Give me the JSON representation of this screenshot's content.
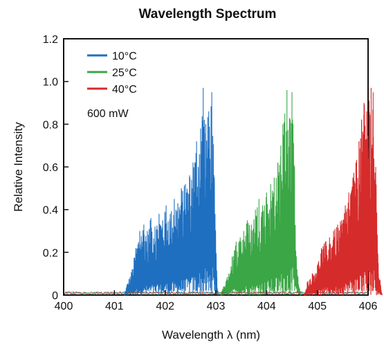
{
  "chart_data": {
    "type": "line",
    "title": "Wavelength Spectrum",
    "xlabel": "Wavelength  λ (nm)",
    "ylabel": "Relative Intensity",
    "xlim": [
      400,
      406
    ],
    "ylim": [
      0,
      1.2
    ],
    "x_ticks": [
      "400",
      "401",
      "402",
      "403",
      "404",
      "405",
      "406"
    ],
    "y_ticks": [
      "0",
      "0.2",
      "0.4",
      "0.6",
      "0.8",
      "1.0",
      "1.2"
    ],
    "grid": false,
    "legend_position": "top-left",
    "annotation": "600 mW",
    "series": [
      {
        "name": "10°C",
        "color": "#1f6fc0",
        "peaks": [
          [
            401.25,
            0.05
          ],
          [
            401.35,
            0.12
          ],
          [
            401.42,
            0.22
          ],
          [
            401.5,
            0.3
          ],
          [
            401.58,
            0.33
          ],
          [
            401.65,
            0.3
          ],
          [
            401.72,
            0.36
          ],
          [
            401.8,
            0.32
          ],
          [
            401.88,
            0.38
          ],
          [
            401.95,
            0.35
          ],
          [
            402.02,
            0.42
          ],
          [
            402.1,
            0.38
          ],
          [
            402.18,
            0.45
          ],
          [
            402.25,
            0.43
          ],
          [
            402.32,
            0.5
          ],
          [
            402.4,
            0.52
          ],
          [
            402.48,
            0.56
          ],
          [
            402.55,
            0.62
          ],
          [
            402.62,
            0.72
          ],
          [
            402.7,
            0.78
          ],
          [
            402.75,
            0.97
          ],
          [
            402.8,
            0.8
          ],
          [
            402.86,
            0.86
          ],
          [
            402.92,
            0.95
          ],
          [
            402.97,
            0.55
          ],
          [
            403.02,
            0.08
          ]
        ]
      },
      {
        "name": "25°C",
        "color": "#3aa646",
        "peaks": [
          [
            403.15,
            0.04
          ],
          [
            403.25,
            0.1
          ],
          [
            403.32,
            0.18
          ],
          [
            403.4,
            0.25
          ],
          [
            403.48,
            0.27
          ],
          [
            403.55,
            0.3
          ],
          [
            403.62,
            0.35
          ],
          [
            403.7,
            0.33
          ],
          [
            403.78,
            0.4
          ],
          [
            403.85,
            0.45
          ],
          [
            403.92,
            0.42
          ],
          [
            404.0,
            0.48
          ],
          [
            404.08,
            0.52
          ],
          [
            404.15,
            0.55
          ],
          [
            404.22,
            0.62
          ],
          [
            404.28,
            0.7
          ],
          [
            404.32,
            0.8
          ],
          [
            404.36,
            0.85
          ],
          [
            404.4,
            0.96
          ],
          [
            404.45,
            0.83
          ],
          [
            404.5,
            0.95
          ],
          [
            404.55,
            0.6
          ],
          [
            404.6,
            0.12
          ],
          [
            404.65,
            0.03
          ]
        ]
      },
      {
        "name": "40°C",
        "color": "#d62b2b",
        "peaks": [
          [
            404.8,
            0.06
          ],
          [
            404.9,
            0.1
          ],
          [
            405.0,
            0.14
          ],
          [
            405.08,
            0.22
          ],
          [
            405.16,
            0.25
          ],
          [
            405.24,
            0.27
          ],
          [
            405.32,
            0.3
          ],
          [
            405.4,
            0.33
          ],
          [
            405.48,
            0.35
          ],
          [
            405.55,
            0.42
          ],
          [
            405.62,
            0.48
          ],
          [
            405.7,
            0.55
          ],
          [
            405.76,
            0.62
          ],
          [
            405.82,
            0.72
          ],
          [
            405.87,
            0.82
          ],
          [
            405.92,
            0.9
          ],
          [
            405.97,
            0.86
          ],
          [
            406.02,
            0.91
          ],
          [
            406.06,
            0.97
          ],
          [
            406.1,
            0.95
          ],
          [
            406.15,
            0.6
          ],
          [
            406.2,
            0.15
          ],
          [
            406.25,
            0.04
          ]
        ]
      }
    ]
  }
}
